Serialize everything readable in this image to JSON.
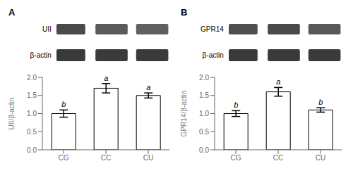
{
  "chart_data": [
    {
      "type": "bar",
      "title": "A",
      "categories": [
        "CG",
        "CC",
        "CU"
      ],
      "values": [
        1.0,
        1.7,
        1.5
      ],
      "errors": [
        0.1,
        0.13,
        0.07
      ],
      "significance": [
        "b",
        "a",
        "a"
      ],
      "ylabel": "UII/β-actin",
      "ylim": [
        0,
        2
      ],
      "yticks": [
        {
          "value": 0,
          "label": "0.0"
        },
        0.5,
        {
          "value": 1,
          "label": "1.0"
        },
        1.5,
        {
          "value": 2,
          "label": "2.0"
        }
      ],
      "color": "#ffffff",
      "annotations": [
        {
          "text": "UII",
          "colors": [
            "#4a4a4a",
            "#5a5a5a",
            "#606060"
          ]
        },
        {
          "text": "β-actin",
          "colors": [
            "#3a3a3a",
            "#3a3a3a",
            "#3a3a3a"
          ]
        }
      ]
    },
    {
      "type": "bar",
      "title": "B",
      "categories": [
        "CG",
        "CC",
        "CU"
      ],
      "values": [
        1.0,
        1.6,
        1.1
      ],
      "errors": [
        0.08,
        0.12,
        0.06
      ],
      "significance": [
        "b",
        "a",
        "b"
      ],
      "ylabel": "GPR14/β-actin",
      "ylim": [
        0,
        2
      ],
      "yticks": [
        {
          "value": 0,
          "label": "0.0"
        },
        0.5,
        {
          "value": 1,
          "label": "1.0"
        },
        1.5,
        {
          "value": 2,
          "label": "2.0"
        }
      ],
      "color": "#ffffff",
      "annotations": [
        {
          "text": "GPR14",
          "colors": [
            "#505050",
            "#4a4a4a",
            "#585858"
          ]
        },
        {
          "text": "β-actin",
          "colors": [
            "#3a3a3a",
            "#3a3a3a",
            "#3a3a3a"
          ]
        }
      ]
    }
  ]
}
